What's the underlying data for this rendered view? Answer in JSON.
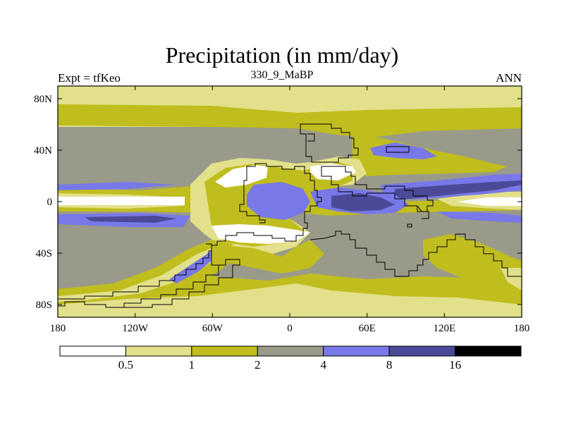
{
  "figure": {
    "title": "Precipitation (in mm/day)",
    "left_label": "Expt = tfKeo",
    "center_label": "330_9_MaBP",
    "right_label": "ANN"
  },
  "axes": {
    "lat_ticks": [
      "80N",
      "40N",
      "0",
      "40S",
      "80S"
    ],
    "lon_ticks": [
      "180",
      "120W",
      "60W",
      "0",
      "60E",
      "120E",
      "180"
    ]
  },
  "colorbar": {
    "labels": [
      "0.5",
      "1",
      "2",
      "4",
      "8",
      "16"
    ],
    "colors": [
      "#ffffff",
      "#e2e08a",
      "#c0bd1e",
      "#9a9a8a",
      "#7878e8",
      "#4a4a98",
      "#000000"
    ]
  },
  "palette": {
    "white": "#ffffff",
    "light_yellow": "#e2e08a",
    "olive": "#c0bd1e",
    "gray": "#9a9a8a",
    "blue": "#7878e8",
    "dark_blue": "#4a4a98"
  }
}
